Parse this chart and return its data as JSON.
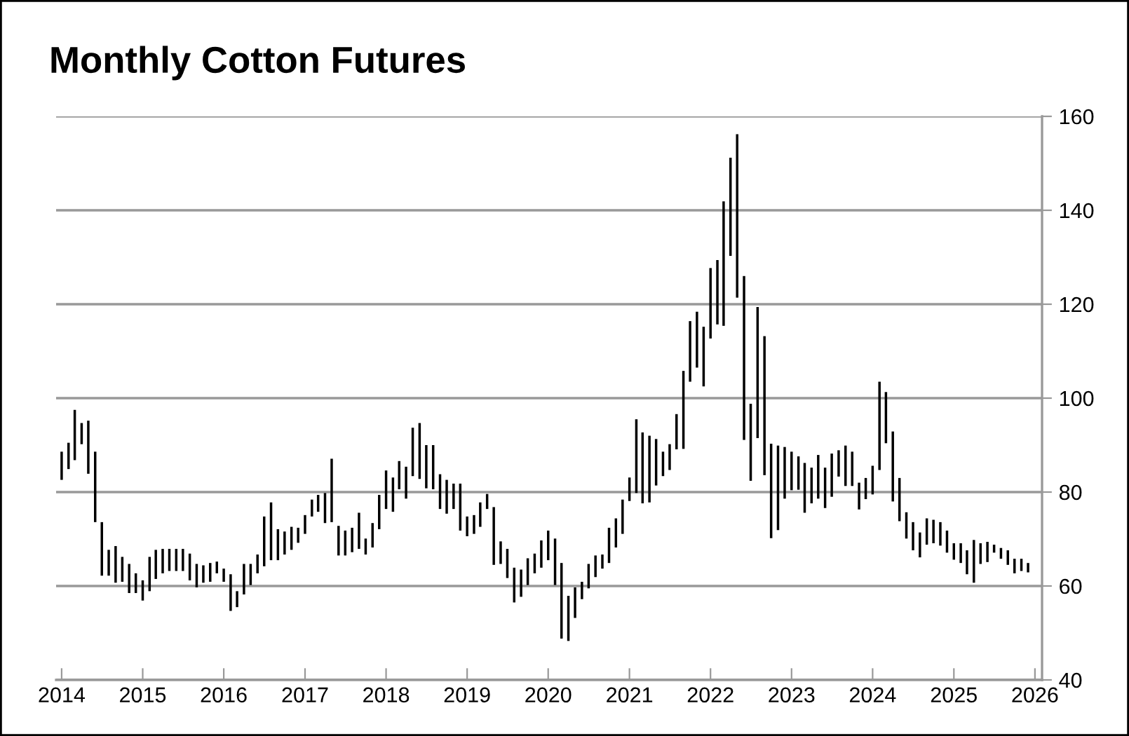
{
  "chart_data": {
    "type": "bar",
    "title": "Monthly Cotton Futures",
    "x": [
      "2014-01",
      "2014-02",
      "2014-03",
      "2014-04",
      "2014-05",
      "2014-06",
      "2014-07",
      "2014-08",
      "2014-09",
      "2014-10",
      "2014-11",
      "2014-12",
      "2015-01",
      "2015-02",
      "2015-03",
      "2015-04",
      "2015-05",
      "2015-06",
      "2015-07",
      "2015-08",
      "2015-09",
      "2015-10",
      "2015-11",
      "2015-12",
      "2016-01",
      "2016-02",
      "2016-03",
      "2016-04",
      "2016-05",
      "2016-06",
      "2016-07",
      "2016-08",
      "2016-09",
      "2016-10",
      "2016-11",
      "2016-12",
      "2017-01",
      "2017-02",
      "2017-03",
      "2017-04",
      "2017-05",
      "2017-06",
      "2017-07",
      "2017-08",
      "2017-09",
      "2017-10",
      "2017-11",
      "2017-12",
      "2018-01",
      "2018-02",
      "2018-03",
      "2018-04",
      "2018-05",
      "2018-06",
      "2018-07",
      "2018-08",
      "2018-09",
      "2018-10",
      "2018-11",
      "2018-12",
      "2019-01",
      "2019-02",
      "2019-03",
      "2019-04",
      "2019-05",
      "2019-06",
      "2019-07",
      "2019-08",
      "2019-09",
      "2019-10",
      "2019-11",
      "2019-12",
      "2020-01",
      "2020-02",
      "2020-03",
      "2020-04",
      "2020-05",
      "2020-06",
      "2020-07",
      "2020-08",
      "2020-09",
      "2020-10",
      "2020-11",
      "2020-12",
      "2021-01",
      "2021-02",
      "2021-03",
      "2021-04",
      "2021-05",
      "2021-06",
      "2021-07",
      "2021-08",
      "2021-09",
      "2021-10",
      "2021-11",
      "2021-12",
      "2022-01",
      "2022-02",
      "2022-03",
      "2022-04",
      "2022-05",
      "2022-06",
      "2022-07",
      "2022-08",
      "2022-09",
      "2022-10",
      "2022-11",
      "2022-12",
      "2023-01",
      "2023-02",
      "2023-03",
      "2023-04",
      "2023-05",
      "2023-06",
      "2023-07",
      "2023-08",
      "2023-09",
      "2023-10",
      "2023-11",
      "2023-12",
      "2024-01",
      "2024-02",
      "2024-03",
      "2024-04",
      "2024-05",
      "2024-06",
      "2024-07",
      "2024-08",
      "2024-09",
      "2024-10",
      "2024-11",
      "2024-12",
      "2025-01",
      "2025-02",
      "2025-03",
      "2025-04",
      "2025-05",
      "2025-06",
      "2025-07",
      "2025-08",
      "2025-09",
      "2025-10",
      "2025-11",
      "2025-12"
    ],
    "base": [
      82.6,
      84.9,
      86.8,
      90.2,
      83.9,
      73.6,
      62.2,
      62.2,
      60.7,
      60.9,
      58.5,
      58.5,
      56.9,
      58.9,
      61.5,
      62.7,
      63.2,
      63.2,
      63.2,
      61.2,
      59.7,
      60.7,
      60.9,
      62.7,
      60.9,
      54.7,
      55.5,
      58.2,
      60.2,
      62.7,
      64.2,
      65.5,
      65.5,
      66.7,
      67.7,
      69.2,
      71.1,
      74.8,
      75.8,
      73.4,
      73.6,
      66.5,
      66.5,
      67.2,
      67.9,
      66.7,
      68.2,
      72.1,
      76.4,
      75.8,
      80.6,
      78.6,
      83.4,
      82.8,
      80.8,
      80.6,
      76.4,
      75.4,
      76.4,
      71.8,
      70.6,
      71.1,
      72.6,
      76.4,
      64.5,
      64.7,
      61.7,
      56.5,
      57.7,
      60.2,
      62.7,
      63.9,
      65.5,
      60.2,
      48.8,
      48.3,
      53.2,
      57.2,
      59.5,
      61.9,
      63.7,
      64.9,
      68.2,
      71.1,
      78.1,
      79.8,
      77.6,
      77.8,
      81.4,
      83.4,
      84.7,
      89.1,
      89.2,
      103.5,
      106.5,
      102.5,
      112.7,
      115.7,
      115.4,
      130.3,
      121.4,
      91.1,
      82.4,
      91.5,
      83.6,
      70.2,
      71.9,
      78.6,
      80.4,
      80.5,
      75.6,
      77.6,
      78.6,
      76.6,
      79.0,
      83.3,
      81.3,
      81.3,
      76.3,
      78.5,
      79.5,
      84.7,
      90.4,
      78.0,
      73.8,
      70.1,
      67.6,
      66.1,
      68.8,
      69.1,
      68.6,
      67.1,
      65.6,
      64.9,
      62.5,
      60.7,
      64.7,
      65.1,
      67.1,
      65.8,
      64.5,
      62.7,
      63.2,
      62.9
    ],
    "values": [
      6.0,
      5.6,
      10.7,
      4.5,
      11.3,
      15.0,
      11.4,
      5.5,
      7.8,
      5.3,
      6.2,
      4.2,
      4.3,
      7.3,
      6.2,
      5.2,
      4.7,
      4.7,
      4.7,
      5.7,
      5.0,
      3.7,
      4.0,
      2.5,
      2.8,
      7.8,
      3.4,
      6.5,
      4.5,
      4.0,
      10.6,
      12.3,
      6.6,
      4.9,
      4.9,
      3.2,
      4.0,
      3.6,
      3.6,
      6.4,
      13.5,
      6.3,
      5.3,
      5.2,
      7.7,
      3.4,
      5.2,
      7.3,
      8.2,
      7.3,
      6.0,
      6.8,
      10.3,
      11.9,
      9.2,
      9.4,
      7.4,
      7.2,
      5.4,
      10.0,
      4.2,
      4.0,
      5.2,
      3.2,
      12.3,
      4.8,
      6.2,
      7.4,
      5.8,
      5.7,
      4.2,
      5.8,
      6.3,
      9.9,
      16.1,
      9.6,
      6.5,
      3.7,
      5.2,
      4.6,
      3.0,
      7.5,
      6.2,
      7.3,
      5.0,
      15.7,
      15.1,
      14.2,
      9.9,
      5.2,
      5.5,
      7.5,
      16.6,
      12.9,
      11.9,
      12.7,
      15.0,
      13.7,
      26.5,
      20.9,
      34.8,
      34.9,
      16.4,
      27.9,
      29.6,
      20.1,
      18.0,
      11.0,
      8.2,
      7.1,
      10.6,
      7.6,
      9.3,
      8.6,
      9.2,
      5.6,
      8.6,
      7.3,
      5.7,
      4.5,
      6.1,
      18.8,
      10.9,
      14.9,
      9.2,
      5.6,
      6.0,
      5.3,
      5.6,
      5.0,
      5.0,
      4.7,
      3.5,
      4.2,
      5.1,
      9.1,
      4.4,
      4.3,
      1.7,
      2.3,
      3.1,
      3.1,
      2.6,
      2.0
    ],
    "color": "#000000",
    "xlim": [
      "2013-12-07",
      "2026-02-02"
    ],
    "xticks": [
      {
        "value": "2014",
        "label": "2014"
      },
      {
        "value": "2015",
        "label": "2015"
      },
      {
        "value": "2016",
        "label": "2016"
      },
      {
        "value": "2017",
        "label": "2017"
      },
      {
        "value": "2018",
        "label": "2018"
      },
      {
        "value": "2019",
        "label": "2019"
      },
      {
        "value": "2020",
        "label": "2020"
      },
      {
        "value": "2021",
        "label": "2021"
      },
      {
        "value": "2022",
        "label": "2022"
      },
      {
        "value": "2023",
        "label": "2023"
      },
      {
        "value": "2024",
        "label": "2024"
      },
      {
        "value": "2025",
        "label": "2025"
      },
      {
        "value": "2026",
        "label": "2026"
      }
    ],
    "ylim": [
      40,
      160
    ],
    "yticks": [
      40,
      60,
      80,
      100,
      120,
      140,
      160
    ],
    "grid": "y"
  }
}
